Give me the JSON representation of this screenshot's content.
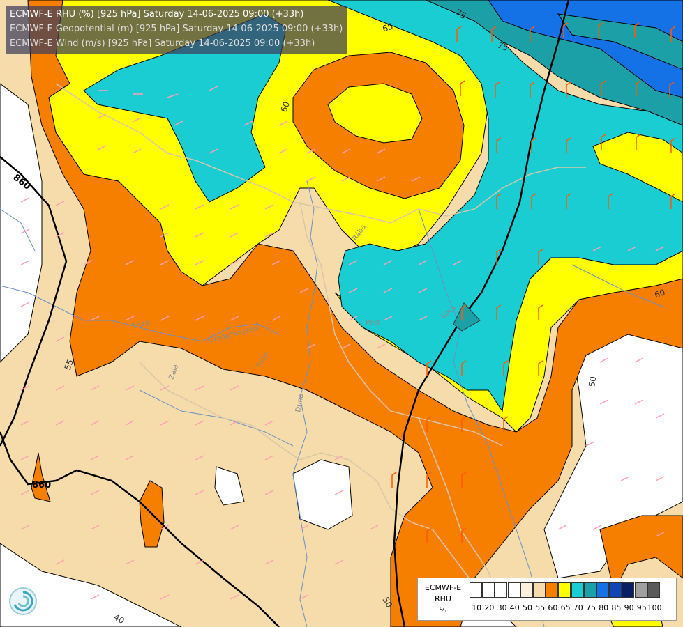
{
  "header": {
    "line1": "ECMWF-E RHU (%) [925 hPa] Saturday 14-06-2025 09:00 (+33h)",
    "line2": "ECMWF-E Geopotential (m) [925 hPa] Saturday 14-06-2025 09:00 (+33h)",
    "line3": "ECMWF-E Wind (m/s) [925 hPa] Saturday 14-06-2025 09:00 (+33h)"
  },
  "legend": {
    "title_line1": "ECMWF-E",
    "title_line2": "RHU",
    "title_line3": "%",
    "classes": [
      {
        "label": "10",
        "color": "#ffffff"
      },
      {
        "label": "20",
        "color": "#ffffff"
      },
      {
        "label": "30",
        "color": "#ffffff"
      },
      {
        "label": "40",
        "color": "#ffffff"
      },
      {
        "label": "50",
        "color": "#fbf0dc"
      },
      {
        "label": "55",
        "color": "#f5dcaa"
      },
      {
        "label": "60",
        "color": "#f77f00"
      },
      {
        "label": "65",
        "color": "#ffff00"
      },
      {
        "label": "70",
        "color": "#19cdd2"
      },
      {
        "label": "75",
        "color": "#1aa0a6"
      },
      {
        "label": "80",
        "color": "#1472e6"
      },
      {
        "label": "85",
        "color": "#1046b4"
      },
      {
        "label": "90",
        "color": "#0a1e64"
      },
      {
        "label": "95",
        "color": "#a0a0a0"
      },
      {
        "label": "100",
        "color": "#5a5a5a"
      }
    ]
  },
  "contour_labels": {
    "rhu_65": "65",
    "rhu_75_a": "75",
    "rhu_75_b": "75",
    "rhu_60_a": "60",
    "rhu_60_b": "60",
    "rhu_55": "55",
    "rhu_50_a": "50",
    "rhu_50_b": "50",
    "rhu_40": "40",
    "geo_860_a": "860",
    "geo_860_b": "860"
  },
  "place_labels": {
    "r1": "Rába",
    "r2": "Zala",
    "r3": "Gradačko jezer",
    "r4": "Tisza",
    "r5": "Duna",
    "r6": "Bács",
    "r7": "Pest",
    "r8": "Tisza"
  },
  "colors": {
    "rhu_55": "#f5dcaa",
    "rhu_60": "#f77f00",
    "rhu_65": "#ffff00",
    "rhu_70": "#19cdd2",
    "rhu_75": "#1aa0a6",
    "rhu_80": "#1472e6",
    "river": "#6a8fc7",
    "border": "#d9c6a8",
    "wind_barb_weak": "#ff9fb4",
    "wind_barb_strong": "#ff5a00"
  }
}
